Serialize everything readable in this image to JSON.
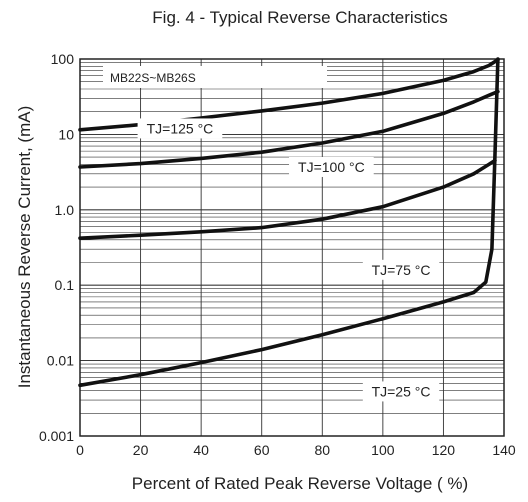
{
  "chart_data": {
    "type": "line",
    "title": "Fig. 4  - Typical Reverse Characteristics",
    "xlabel": "Percent of Rated Peak Reverse Voltage ( %)",
    "ylabel": "Instantaneous Reverse Current, (mA)",
    "xlim": [
      0,
      140
    ],
    "ylim": [
      0.001,
      100
    ],
    "yscale": "log",
    "grid": true,
    "x_ticks": [
      0,
      20,
      40,
      60,
      80,
      100,
      120,
      140
    ],
    "x_tick_labels": [
      "0",
      "20",
      "40",
      "60",
      "80",
      "100",
      "120",
      "140"
    ],
    "y_ticks": [
      0.001,
      0.01,
      0.1,
      1,
      10,
      100
    ],
    "y_tick_labels": [
      "0.001",
      "0.01",
      "0.1",
      "1.0",
      "10",
      "100"
    ],
    "legend_box": "MB22S~MB26S",
    "series": [
      {
        "name": "TJ=125 °C",
        "x": [
          0,
          20,
          40,
          60,
          80,
          100,
          120,
          130,
          135,
          138
        ],
        "y": [
          11.5,
          13.5,
          16.5,
          20.5,
          26,
          35,
          52,
          68,
          82,
          98
        ]
      },
      {
        "name": "TJ=100 °C",
        "x": [
          0,
          20,
          40,
          60,
          80,
          100,
          120,
          130,
          135,
          138
        ],
        "y": [
          3.7,
          4.1,
          4.8,
          5.8,
          7.7,
          11,
          19,
          27,
          33,
          37
        ]
      },
      {
        "name": "TJ=75 °C",
        "x": [
          0,
          20,
          40,
          60,
          80,
          100,
          120,
          130,
          135,
          137
        ],
        "y": [
          0.42,
          0.46,
          0.51,
          0.58,
          0.75,
          1.1,
          2.0,
          3.0,
          4.0,
          4.5
        ]
      },
      {
        "name": "TJ=25 °C",
        "x": [
          0,
          20,
          40,
          60,
          80,
          100,
          120,
          130,
          134,
          136,
          137,
          138
        ],
        "y": [
          0.0047,
          0.0065,
          0.0094,
          0.014,
          0.022,
          0.036,
          0.06,
          0.08,
          0.11,
          0.3,
          5,
          100
        ]
      }
    ],
    "annotations": [
      {
        "text": "TJ=125 °C",
        "x": 33,
        "y": 12
      },
      {
        "text": "TJ=100 °C",
        "x": 83,
        "y": 3.7
      },
      {
        "text": "TJ=75 °C",
        "x": 106,
        "y": 0.16
      },
      {
        "text": "TJ=25 °C",
        "x": 106,
        "y": 0.0039
      }
    ]
  }
}
